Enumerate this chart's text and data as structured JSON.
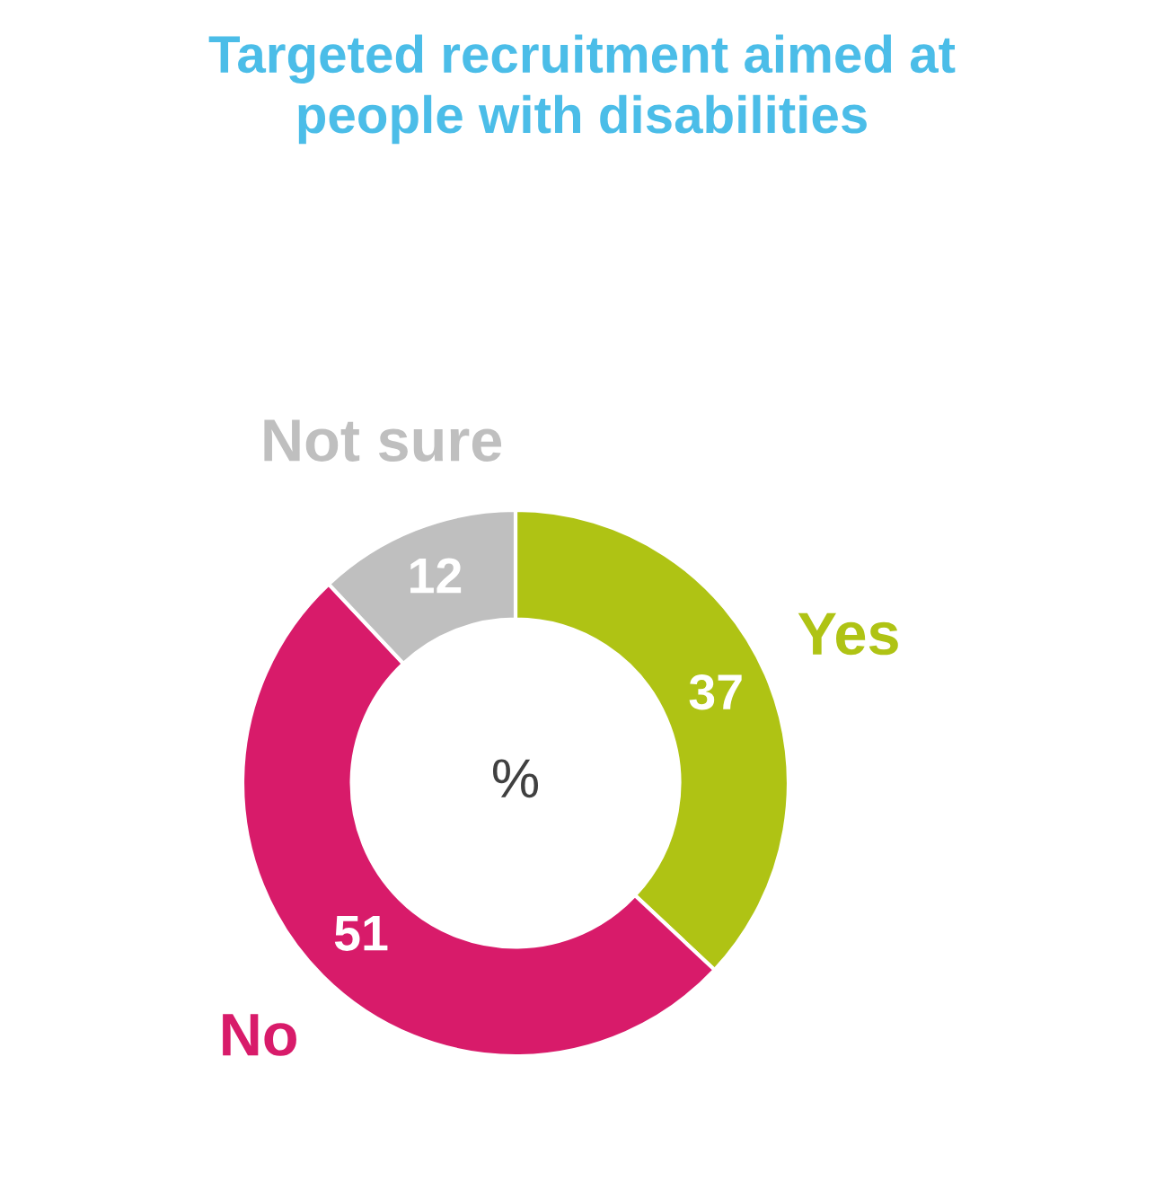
{
  "chart_data": {
    "type": "donut",
    "title": "Targeted recruitment aimed at\npeople with disabilities",
    "categories": [
      "Yes",
      "No",
      "Not sure"
    ],
    "values": [
      37,
      51,
      12
    ],
    "colors": [
      "#afc314",
      "#d81b6a",
      "#bfbfbf"
    ],
    "data_labels": true,
    "annotations": [
      "%"
    ]
  }
}
